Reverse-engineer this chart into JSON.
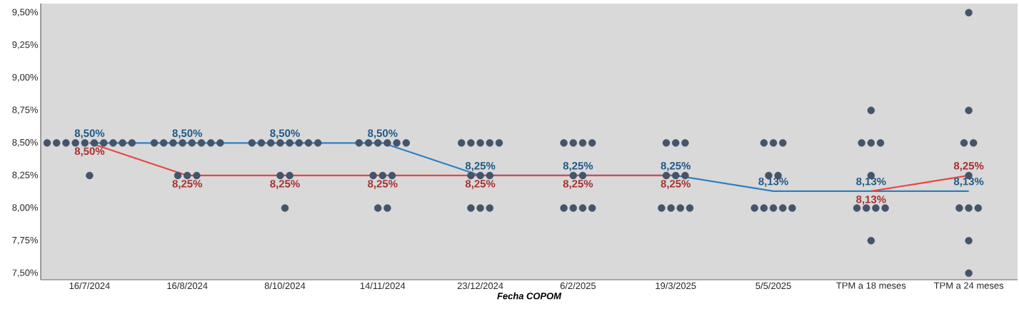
{
  "chart_data": {
    "type": "scatter",
    "xlabel": "**Fecha COPOM**",
    "categories": [
      "16/7/2024",
      "16/8/2024",
      "8/10/2024",
      "14/11/2024",
      "23/12/2024",
      "6/2/2025",
      "19/3/2025",
      "5/5/2025",
      "TPM a 18 meses",
      "TPM a 24 meses"
    ],
    "ylim": [
      7.45,
      9.57
    ],
    "yticks": [
      {
        "value": 7.5,
        "label": "7,50%"
      },
      {
        "value": 7.75,
        "label": "7,75%"
      },
      {
        "value": 8.0,
        "label": "8,00%"
      },
      {
        "value": 8.25,
        "label": "8,25%"
      },
      {
        "value": 8.5,
        "label": "8,50%"
      },
      {
        "value": 8.75,
        "label": "8,75%"
      },
      {
        "value": 9.0,
        "label": "9,00%"
      },
      {
        "value": 9.25,
        "label": "9,25%"
      },
      {
        "value": 9.5,
        "label": "9,50%"
      }
    ],
    "series": [
      {
        "color": "#44546a",
        "marker": "circle",
        "x": [
          "16/7/2024",
          "16/7/2024",
          "16/7/2024",
          "16/7/2024",
          "16/7/2024",
          "16/7/2024",
          "16/7/2024",
          "16/7/2024",
          "16/7/2024",
          "16/7/2024",
          "16/7/2024",
          "16/8/2024",
          "16/8/2024",
          "16/8/2024",
          "16/8/2024",
          "16/8/2024",
          "16/8/2024",
          "16/8/2024",
          "16/8/2024",
          "16/8/2024",
          "16/8/2024",
          "16/8/2024",
          "8/10/2024",
          "8/10/2024",
          "8/10/2024",
          "8/10/2024",
          "8/10/2024",
          "8/10/2024",
          "8/10/2024",
          "8/10/2024",
          "8/10/2024",
          "8/10/2024",
          "8/10/2024",
          "14/11/2024",
          "14/11/2024",
          "14/11/2024",
          "14/11/2024",
          "14/11/2024",
          "14/11/2024",
          "14/11/2024",
          "14/11/2024",
          "14/11/2024",
          "14/11/2024",
          "14/11/2024",
          "23/12/2024",
          "23/12/2024",
          "23/12/2024",
          "23/12/2024",
          "23/12/2024",
          "23/12/2024",
          "23/12/2024",
          "23/12/2024",
          "23/12/2024",
          "23/12/2024",
          "23/12/2024",
          "6/2/2025",
          "6/2/2025",
          "6/2/2025",
          "6/2/2025",
          "6/2/2025",
          "6/2/2025",
          "6/2/2025",
          "6/2/2025",
          "6/2/2025",
          "6/2/2025",
          "19/3/2025",
          "19/3/2025",
          "19/3/2025",
          "19/3/2025",
          "19/3/2025",
          "19/3/2025",
          "19/3/2025",
          "19/3/2025",
          "19/3/2025",
          "19/3/2025",
          "5/5/2025",
          "5/5/2025",
          "5/5/2025",
          "5/5/2025",
          "5/5/2025",
          "5/5/2025",
          "5/5/2025",
          "5/5/2025",
          "5/5/2025",
          "5/5/2025",
          "TPM a 18 meses",
          "TPM a 18 meses",
          "TPM a 18 meses",
          "TPM a 18 meses",
          "TPM a 18 meses",
          "TPM a 18 meses",
          "TPM a 18 meses",
          "TPM a 18 meses",
          "TPM a 18 meses",
          "TPM a 18 meses",
          "TPM a 24 meses",
          "TPM a 24 meses",
          "TPM a 24 meses",
          "TPM a 24 meses",
          "TPM a 24 meses",
          "TPM a 24 meses",
          "TPM a 24 meses",
          "TPM a 24 meses",
          "TPM a 24 meses",
          "TPM a 24 meses"
        ],
        "values": [
          8.5,
          8.5,
          8.5,
          8.5,
          8.5,
          8.5,
          8.5,
          8.5,
          8.5,
          8.5,
          8.25,
          8.5,
          8.5,
          8.5,
          8.5,
          8.5,
          8.5,
          8.5,
          8.5,
          8.25,
          8.25,
          8.25,
          8.5,
          8.5,
          8.5,
          8.5,
          8.5,
          8.5,
          8.5,
          8.5,
          8.25,
          8.25,
          8.0,
          8.5,
          8.5,
          8.5,
          8.5,
          8.5,
          8.5,
          8.25,
          8.25,
          8.25,
          8.0,
          8.0,
          8.5,
          8.5,
          8.5,
          8.5,
          8.5,
          8.25,
          8.25,
          8.25,
          8.0,
          8.0,
          8.0,
          8.5,
          8.5,
          8.5,
          8.5,
          8.25,
          8.25,
          8.0,
          8.0,
          8.0,
          8.0,
          8.5,
          8.5,
          8.5,
          8.25,
          8.25,
          8.25,
          8.0,
          8.0,
          8.0,
          8.0,
          8.5,
          8.5,
          8.5,
          8.25,
          8.25,
          8.0,
          8.0,
          8.0,
          8.0,
          8.0,
          8.75,
          8.5,
          8.5,
          8.5,
          8.25,
          8.0,
          8.0,
          8.0,
          8.0,
          7.75,
          9.5,
          8.75,
          8.5,
          8.5,
          8.25,
          8.0,
          8.0,
          8.0,
          7.75,
          7.5
        ]
      },
      {
        "type": "line",
        "color": "#2f7fc1",
        "values": [
          8.5,
          8.5,
          8.5,
          8.5,
          8.25,
          8.25,
          8.25,
          8.13,
          8.13,
          8.13
        ],
        "value_labels": [
          "8,50%",
          "8,50%",
          "8,50%",
          "8,50%",
          "8,25%",
          "8,25%",
          "8,25%",
          "8,13%",
          "8,13%",
          "8,13%"
        ]
      },
      {
        "type": "line",
        "color": "#ee4444",
        "values": [
          8.5,
          8.25,
          8.25,
          8.25,
          8.25,
          8.25,
          8.25,
          null,
          8.13,
          8.25
        ],
        "value_labels": [
          "8,50%",
          "8,25%",
          "8,25%",
          "8,25%",
          "8,25%",
          "8,25%",
          "8,25%",
          null,
          "8,13%",
          "8,25%"
        ]
      }
    ]
  }
}
